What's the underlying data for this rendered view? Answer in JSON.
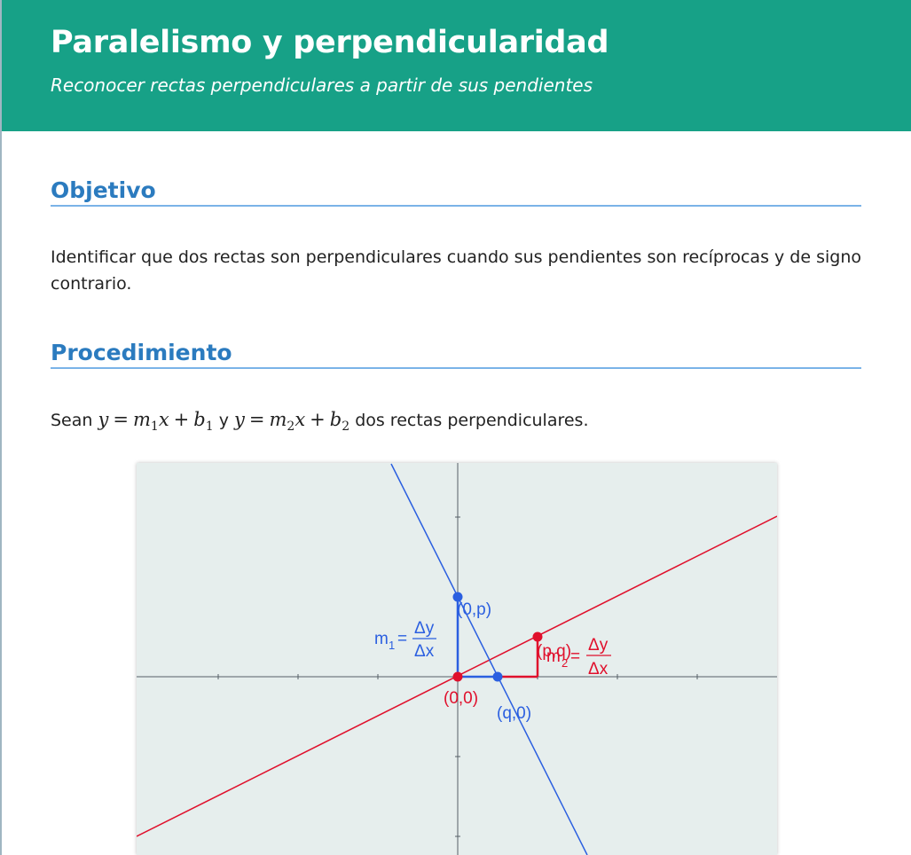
{
  "header": {
    "title": "Paralelismo y perpendicularidad",
    "subtitle": "Reconocer rectas perpendiculares a partir de sus pendientes"
  },
  "sections": {
    "objective": {
      "heading": "Objetivo",
      "text": "Identificar que dos rectas son perpendiculares cuando sus pendientes son recíprocas y de signo contrario."
    },
    "procedure": {
      "heading": "Procedimiento",
      "intro_start": "Sean",
      "eq1": {
        "y": "y",
        "eq": "=",
        "m": "m",
        "m_sub": "1",
        "x": "x",
        "plus": "+",
        "b": "b",
        "b_sub": "1"
      },
      "conj": "y",
      "eq2": {
        "y": "y",
        "eq": "=",
        "m": "m",
        "m_sub": "2",
        "x": "x",
        "plus": "+",
        "b": "b",
        "b_sub": "2"
      },
      "intro_end": "dos rectas perpendiculares."
    }
  },
  "figure": {
    "colors": {
      "background": "#e6eeed",
      "axis": "#555f66",
      "blue": "#2b5fe0",
      "red": "#e0102c"
    },
    "points": {
      "origin": "(0,0)",
      "blue_y_intercept": "(0,p)",
      "blue_x_intercept": "(q,0)",
      "red_point": "(p,q)"
    },
    "slope_labels": {
      "m1": {
        "m": "m",
        "sub": "1",
        "eq": "=",
        "num": "Δy",
        "den": "Δx"
      },
      "m2": {
        "m": "m",
        "sub": "2",
        "eq": "=",
        "num": "Δy",
        "den": "Δx"
      }
    }
  }
}
